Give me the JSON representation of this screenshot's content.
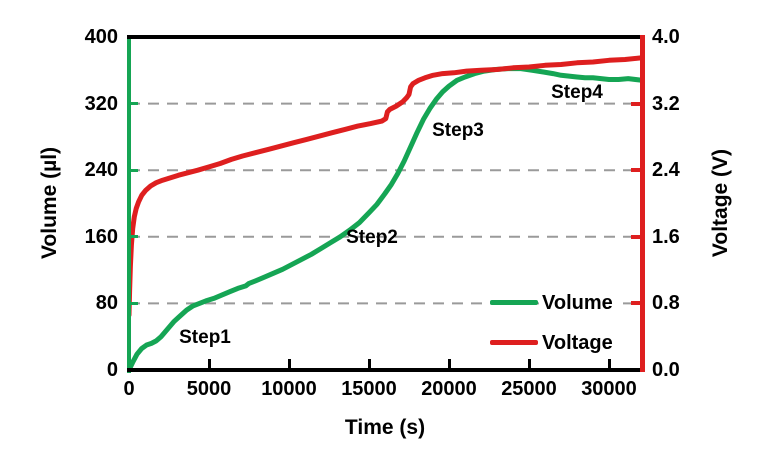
{
  "colors": {
    "volume_green": "#15a554",
    "voltage_red": "#de1f1f",
    "axis_black": "#000000",
    "gridline_gray": "#9a9a9a",
    "background": "#ffffff"
  },
  "legend": {
    "items": [
      {
        "label": "Volume",
        "color": "#15a554"
      },
      {
        "label": "Voltage",
        "color": "#de1f1f"
      }
    ]
  },
  "chart_data": {
    "type": "line",
    "title": "",
    "xlabel": "Time (s)",
    "ylabel_left": "Volume (µl)",
    "ylabel_right": "Voltage (V)",
    "x_range": [
      0,
      32060
    ],
    "x_tick_values": [
      0,
      5000,
      10000,
      15000,
      20000,
      25000,
      30000
    ],
    "x_tick_labels": [
      "0",
      "5000",
      "10000",
      "15000",
      "20000",
      "25000",
      "30000"
    ],
    "y_left_range": [
      0,
      400
    ],
    "y_left_tick_values": [
      0,
      80,
      160,
      240,
      320,
      400
    ],
    "y_left_tick_labels": [
      "0",
      "80",
      "160",
      "240",
      "320",
      "400"
    ],
    "y_right_range": [
      0.0,
      4.0
    ],
    "y_right_tick_values": [
      0.0,
      0.8,
      1.6,
      2.4,
      3.2,
      4.0
    ],
    "y_right_tick_labels": [
      "0.0",
      "0.8",
      "1.6",
      "2.4",
      "3.2",
      "4.0"
    ],
    "gridline_values_left": [
      80,
      160,
      240,
      320
    ],
    "grid": "horizontal-dashed",
    "legend_position": "inside-lower-right",
    "annotations": [
      {
        "text": "Step1",
        "t": 4750,
        "volume": 38
      },
      {
        "text": "Step2",
        "t": 15200,
        "volume": 158
      },
      {
        "text": "Step3",
        "t": 20550,
        "volume": 287
      },
      {
        "text": "Step4",
        "t": 28000,
        "volume": 333
      }
    ],
    "series": [
      {
        "name": "Volume",
        "axis": "left",
        "units": "µl",
        "color": "#15a554",
        "points": [
          [
            0,
            0
          ],
          [
            250,
            10
          ],
          [
            500,
            19
          ],
          [
            800,
            26
          ],
          [
            1100,
            30
          ],
          [
            1400,
            32
          ],
          [
            1700,
            35
          ],
          [
            2000,
            40
          ],
          [
            2400,
            49
          ],
          [
            2800,
            58
          ],
          [
            3200,
            65
          ],
          [
            3600,
            72
          ],
          [
            4000,
            77
          ],
          [
            4400,
            80
          ],
          [
            4800,
            83
          ],
          [
            5300,
            86
          ],
          [
            5800,
            90
          ],
          [
            6300,
            94
          ],
          [
            6800,
            98
          ],
          [
            7300,
            101
          ],
          [
            7500,
            104
          ],
          [
            7900,
            107
          ],
          [
            8400,
            111
          ],
          [
            9000,
            116
          ],
          [
            9600,
            121
          ],
          [
            10200,
            127
          ],
          [
            10800,
            133
          ],
          [
            11400,
            139
          ],
          [
            12000,
            146
          ],
          [
            12600,
            153
          ],
          [
            13200,
            160
          ],
          [
            13800,
            168
          ],
          [
            14400,
            177
          ],
          [
            15000,
            189
          ],
          [
            15500,
            199
          ],
          [
            16000,
            212
          ],
          [
            16400,
            223
          ],
          [
            16800,
            236
          ],
          [
            17200,
            251
          ],
          [
            17600,
            268
          ],
          [
            18000,
            285
          ],
          [
            18400,
            301
          ],
          [
            18800,
            314
          ],
          [
            19200,
            325
          ],
          [
            19600,
            334
          ],
          [
            20000,
            341
          ],
          [
            20500,
            348
          ],
          [
            21000,
            352
          ],
          [
            21600,
            356
          ],
          [
            22200,
            359
          ],
          [
            22900,
            361
          ],
          [
            23700,
            362
          ],
          [
            24500,
            362
          ],
          [
            25200,
            360
          ],
          [
            25900,
            358
          ],
          [
            26500,
            356
          ],
          [
            27000,
            354
          ],
          [
            27500,
            353
          ],
          [
            28000,
            352
          ],
          [
            28500,
            351
          ],
          [
            29000,
            351
          ],
          [
            29500,
            350
          ],
          [
            30000,
            349
          ],
          [
            30600,
            349
          ],
          [
            31200,
            350
          ],
          [
            32060,
            348
          ]
        ]
      },
      {
        "name": "Voltage",
        "axis": "right",
        "units": "V",
        "color": "#de1f1f",
        "points": [
          [
            0,
            0.66
          ],
          [
            40,
            0.95
          ],
          [
            90,
            1.25
          ],
          [
            150,
            1.5
          ],
          [
            230,
            1.7
          ],
          [
            330,
            1.84
          ],
          [
            450,
            1.94
          ],
          [
            600,
            2.02
          ],
          [
            800,
            2.1
          ],
          [
            1050,
            2.16
          ],
          [
            1350,
            2.21
          ],
          [
            1700,
            2.25
          ],
          [
            2100,
            2.28
          ],
          [
            2600,
            2.31
          ],
          [
            3100,
            2.34
          ],
          [
            3700,
            2.37
          ],
          [
            4300,
            2.4
          ],
          [
            5000,
            2.44
          ],
          [
            5700,
            2.48
          ],
          [
            6400,
            2.53
          ],
          [
            7100,
            2.57
          ],
          [
            7900,
            2.61
          ],
          [
            8700,
            2.65
          ],
          [
            9500,
            2.69
          ],
          [
            10300,
            2.73
          ],
          [
            11100,
            2.77
          ],
          [
            11900,
            2.81
          ],
          [
            12700,
            2.85
          ],
          [
            13500,
            2.89
          ],
          [
            14300,
            2.93
          ],
          [
            15100,
            2.96
          ],
          [
            15800,
            2.99
          ],
          [
            16050,
            3.02
          ],
          [
            16150,
            3.1
          ],
          [
            16300,
            3.13
          ],
          [
            16700,
            3.17
          ],
          [
            17100,
            3.22
          ],
          [
            17350,
            3.27
          ],
          [
            17500,
            3.31
          ],
          [
            17600,
            3.4
          ],
          [
            17750,
            3.44
          ],
          [
            18100,
            3.48
          ],
          [
            18500,
            3.51
          ],
          [
            19000,
            3.54
          ],
          [
            19600,
            3.56
          ],
          [
            20300,
            3.57
          ],
          [
            21100,
            3.59
          ],
          [
            22000,
            3.6
          ],
          [
            23000,
            3.61
          ],
          [
            24000,
            3.63
          ],
          [
            25000,
            3.64
          ],
          [
            26000,
            3.66
          ],
          [
            27000,
            3.67
          ],
          [
            28000,
            3.69
          ],
          [
            29000,
            3.7
          ],
          [
            30000,
            3.72
          ],
          [
            31000,
            3.73
          ],
          [
            32060,
            3.75
          ]
        ]
      }
    ]
  }
}
